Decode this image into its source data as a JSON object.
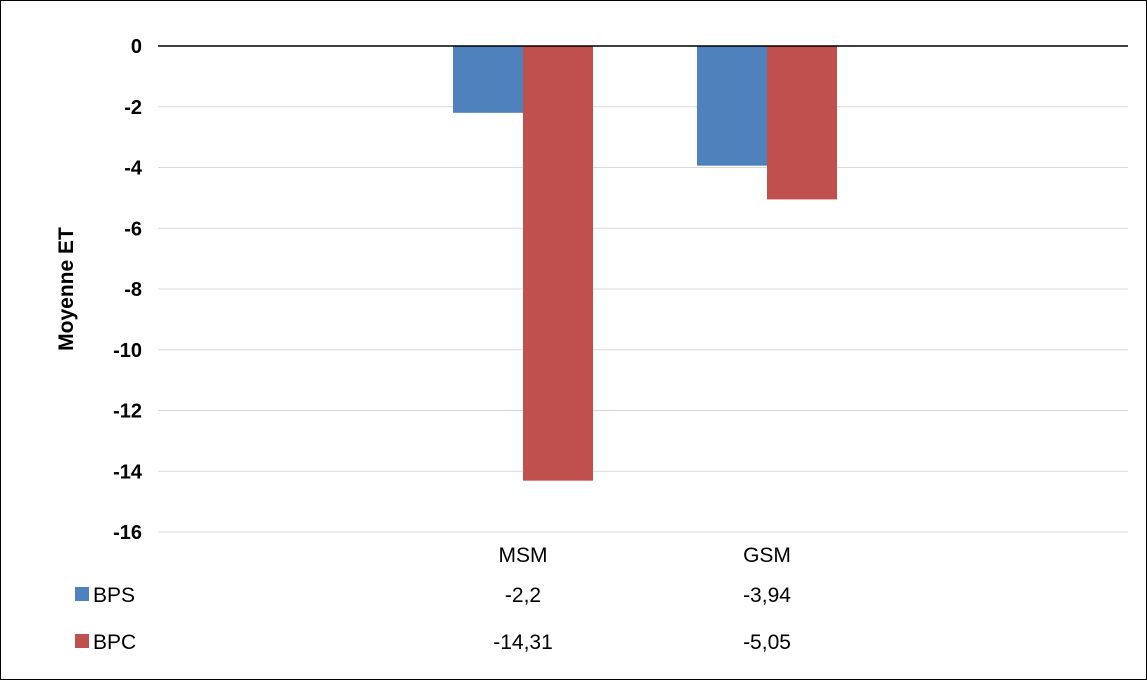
{
  "chart_data": {
    "type": "bar",
    "ylabel": "Moyenne ET",
    "categories": [
      "MSM",
      "GSM"
    ],
    "series": [
      {
        "name": "BPS",
        "values": [
          -2.2,
          -3.94
        ],
        "labels": [
          "-2,2",
          "-3,94"
        ],
        "color": "#4f81bd"
      },
      {
        "name": "BPC",
        "values": [
          -14.31,
          -5.05
        ],
        "labels": [
          "-14,31",
          "-5,05"
        ],
        "color": "#c0504d"
      }
    ],
    "ylim": [
      -16,
      0
    ],
    "yticks": [
      0,
      -2,
      -4,
      -6,
      -8,
      -10,
      -12,
      -14,
      -16
    ],
    "grid": true,
    "legend": "data-table-bottom"
  }
}
